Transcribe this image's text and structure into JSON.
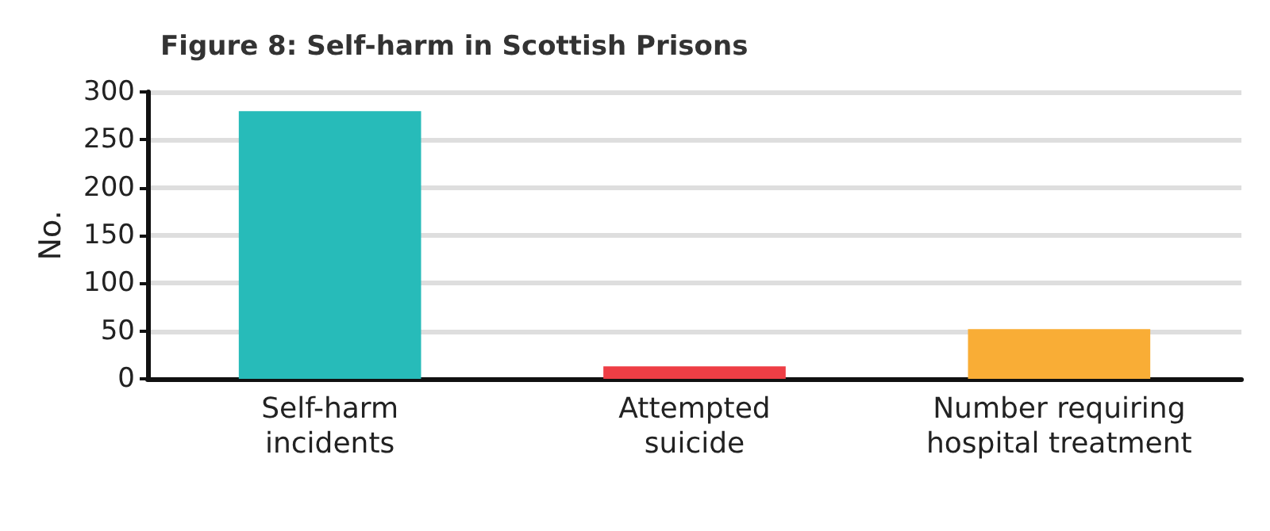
{
  "chart_data": {
    "type": "bar",
    "title": "Figure 8: Self-harm in Scottish Prisons",
    "ylabel": "No.",
    "categories": [
      "Self-harm incidents",
      "Attempted suicide",
      "Number requiring hospital treatment"
    ],
    "values": [
      280,
      13,
      52
    ],
    "colors": [
      "#27bbb9",
      "#ee3e45",
      "#f9ad36"
    ],
    "ylim": [
      0,
      300
    ],
    "yticks": [
      0,
      50,
      100,
      150,
      200,
      250,
      300
    ],
    "grid": "y"
  }
}
